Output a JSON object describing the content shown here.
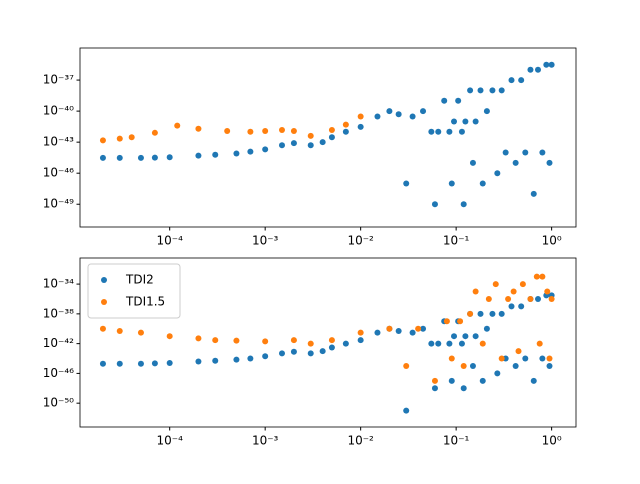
{
  "chart_data": [
    {
      "type": "scatter",
      "xscale": "log",
      "yscale": "log",
      "xlim": [
        1.15e-05,
        1.8
      ],
      "ylim": [
        6.3e-52,
        1.26e-34
      ],
      "xticks": [
        {
          "value": 0.0001,
          "label": "10⁻⁴"
        },
        {
          "value": 0.001,
          "label": "10⁻³"
        },
        {
          "value": 0.01,
          "label": "10⁻²"
        },
        {
          "value": 0.1,
          "label": "10⁻¹"
        },
        {
          "value": 1,
          "label": "10⁰"
        }
      ],
      "yticks": [
        {
          "value": 1e-37,
          "label": "10⁻³⁷"
        },
        {
          "value": 1e-40,
          "label": "10⁻⁴⁰"
        },
        {
          "value": 1e-43,
          "label": "10⁻⁴³"
        },
        {
          "value": 1e-46,
          "label": "10⁻⁴⁶"
        },
        {
          "value": 1e-49,
          "label": "10⁻⁴⁹"
        }
      ],
      "series": [
        {
          "color": "#1f77b4",
          "x": [
            2e-05,
            3e-05,
            5e-05,
            7e-05,
            0.0001,
            0.0002,
            0.0003,
            0.0005,
            0.0007,
            0.001,
            0.0015,
            0.002,
            0.003,
            0.004,
            0.005,
            0.007,
            0.01,
            0.015,
            0.02,
            0.025,
            0.03,
            0.035,
            0.045,
            0.055,
            0.06,
            0.065,
            0.075,
            0.085,
            0.09,
            0.095,
            0.105,
            0.115,
            0.12,
            0.125,
            0.14,
            0.15,
            0.16,
            0.18,
            0.19,
            0.21,
            0.24,
            0.27,
            0.3,
            0.33,
            0.38,
            0.42,
            0.48,
            0.53,
            0.6,
            0.65,
            0.72,
            0.8,
            0.88,
            0.95,
            1
          ],
          "values": [
            3e-45,
            3e-45,
            3e-45,
            3.2e-45,
            3.5e-45,
            5e-45,
            6e-45,
            8e-45,
            1.2e-44,
            2e-44,
            5e-44,
            8e-44,
            5e-44,
            1e-43,
            3e-43,
            1e-42,
            3e-42,
            3e-41,
            1e-40,
            5e-41,
            1e-47,
            3e-41,
            1e-40,
            1e-42,
            1e-49,
            1e-42,
            1e-39,
            1e-42,
            1e-47,
            1e-41,
            1e-39,
            1e-42,
            1e-49,
            1e-41,
            1e-38,
            1e-45,
            1e-41,
            1e-38,
            1e-47,
            1e-40,
            1e-38,
            1e-46,
            1e-38,
            1e-44,
            1e-37,
            1e-45,
            1e-37,
            1e-44,
            1e-36,
            1e-48,
            1e-36,
            1e-44,
            3e-36,
            1e-45,
            3e-36
          ]
        },
        {
          "color": "#ff7f0e",
          "x": [
            2e-05,
            3e-05,
            4e-05,
            7e-05,
            0.00012,
            0.0002,
            0.0004,
            0.0007,
            0.001,
            0.0015,
            0.002,
            0.003,
            0.005,
            0.007,
            0.01
          ],
          "values": [
            1.5e-43,
            2.2e-43,
            3e-43,
            8e-43,
            4e-42,
            2e-42,
            1.2e-42,
            1e-42,
            1.2e-42,
            1.5e-42,
            1.2e-42,
            4e-43,
            1.5e-42,
            5e-42,
            3e-41
          ]
        }
      ]
    },
    {
      "type": "scatter",
      "xscale": "log",
      "yscale": "log",
      "legend": "upper left",
      "xlim": [
        1.15e-05,
        1.8
      ],
      "ylim": [
        6.3e-54,
        3.2e-31
      ],
      "xticks": [
        {
          "value": 0.0001,
          "label": "10⁻⁴"
        },
        {
          "value": 0.001,
          "label": "10⁻³"
        },
        {
          "value": 0.01,
          "label": "10⁻²"
        },
        {
          "value": 0.1,
          "label": "10⁻¹"
        },
        {
          "value": 1,
          "label": "10⁰"
        }
      ],
      "yticks": [
        {
          "value": 1e-34,
          "label": "10⁻³⁴"
        },
        {
          "value": 1e-38,
          "label": "10⁻³⁸"
        },
        {
          "value": 1e-42,
          "label": "10⁻⁴²"
        },
        {
          "value": 1e-46,
          "label": "10⁻⁴⁶"
        },
        {
          "value": 1e-50,
          "label": "10⁻⁵⁰"
        }
      ],
      "series": [
        {
          "name": "TDI2",
          "color": "#1f77b4",
          "x": [
            2e-05,
            3e-05,
            5e-05,
            7e-05,
            0.0001,
            0.0002,
            0.0003,
            0.0005,
            0.0007,
            0.001,
            0.0015,
            0.002,
            0.003,
            0.004,
            0.005,
            0.007,
            0.01,
            0.015,
            0.02,
            0.025,
            0.03,
            0.035,
            0.045,
            0.055,
            0.06,
            0.065,
            0.075,
            0.085,
            0.09,
            0.095,
            0.105,
            0.115,
            0.12,
            0.125,
            0.14,
            0.15,
            0.16,
            0.18,
            0.19,
            0.21,
            0.24,
            0.27,
            0.3,
            0.33,
            0.38,
            0.42,
            0.48,
            0.53,
            0.6,
            0.65,
            0.72,
            0.8,
            0.88,
            0.95,
            1
          ],
          "values": [
            2e-45,
            2e-45,
            2e-45,
            2.2e-45,
            2.5e-45,
            4e-45,
            5e-45,
            7e-45,
            1e-44,
            2e-44,
            5e-44,
            8e-44,
            5e-44,
            1e-43,
            3e-43,
            1e-42,
            3e-42,
            3e-41,
            1e-40,
            5e-41,
            1e-51,
            3e-41,
            1e-40,
            1e-42,
            1e-48,
            1e-42,
            1e-39,
            1e-42,
            1e-47,
            1e-41,
            1e-39,
            1e-42,
            1e-48,
            1e-41,
            1e-38,
            1e-45,
            1e-41,
            1e-38,
            1e-47,
            1e-40,
            1e-38,
            1e-46,
            1e-38,
            1e-44,
            1e-37,
            1e-45,
            1e-37,
            1e-44,
            1e-36,
            1e-47,
            1e-36,
            1e-44,
            3e-36,
            1e-45,
            3e-36
          ]
        },
        {
          "name": "TDI1.5",
          "color": "#ff7f0e",
          "x": [
            2e-05,
            3e-05,
            5e-05,
            0.0001,
            0.0002,
            0.0003,
            0.0005,
            0.001,
            0.002,
            0.003,
            0.005,
            0.01,
            0.02,
            0.03,
            0.04,
            0.06,
            0.08,
            0.09,
            0.11,
            0.12,
            0.14,
            0.16,
            0.19,
            0.22,
            0.26,
            0.3,
            0.35,
            0.4,
            0.45,
            0.5,
            0.6,
            0.7,
            0.75,
            0.8,
            0.9,
            0.95,
            1
          ],
          "values": [
            1e-40,
            5e-41,
            3e-41,
            1e-41,
            5e-42,
            3e-42,
            2.5e-42,
            2e-42,
            3e-42,
            1e-42,
            3e-42,
            3e-41,
            1e-40,
            1e-45,
            1e-40,
            1e-47,
            1e-39,
            1e-44,
            1e-39,
            1e-45,
            1e-38,
            1e-35,
            1e-42,
            1e-36,
            1e-34,
            1e-44,
            1e-36,
            1e-35,
            1e-43,
            1e-34,
            1e-36,
            1e-33,
            1e-42,
            1e-33,
            1e-35,
            1e-44,
            1e-36
          ]
        }
      ]
    }
  ]
}
